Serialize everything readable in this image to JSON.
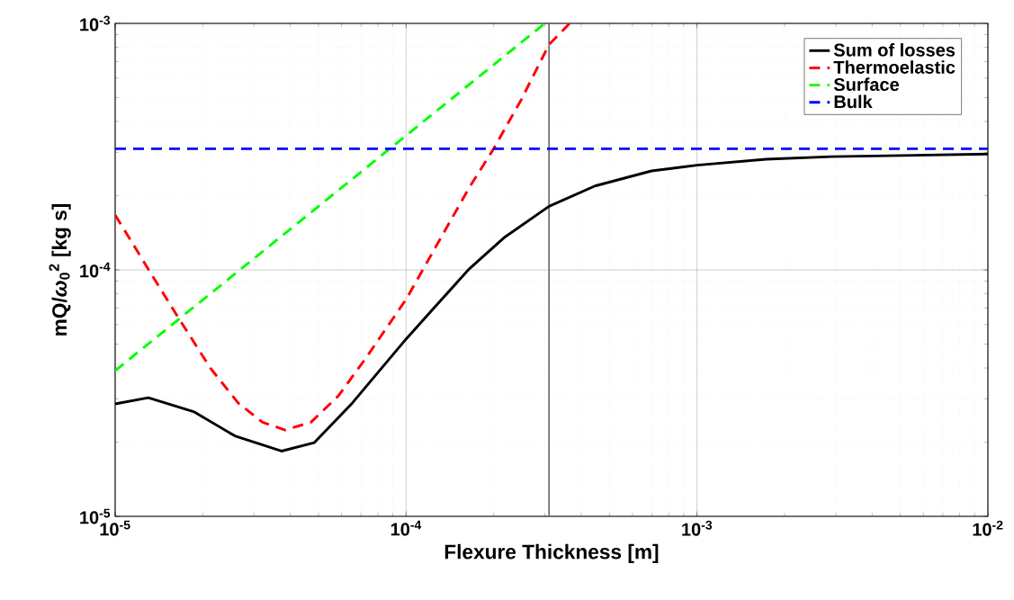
{
  "chart_data": {
    "type": "line",
    "xlabel": "Flexure Thickness [m]",
    "ylabel": "mQ/*ω*$_{0}$$^{2}$ [kg s]",
    "log": "xy",
    "grid": true,
    "legend": "top right",
    "marker": "none",
    "xlim": [
      1e-05,
      0.01
    ],
    "ylim": [
      1e-05,
      0.001
    ],
    "xticks": [
      {
        "value": 1e-05,
        "label": "10$^{-5}$"
      },
      {
        "value": 0.0001,
        "label": "10$^{-4}$"
      },
      {
        "value": 0.001,
        "label": "10$^{-3}$"
      },
      {
        "value": 0.01,
        "label": "10$^{-2}$"
      }
    ],
    "yticks": [
      {
        "value": 1e-05,
        "label": "10$^{-5}$"
      },
      {
        "value": 0.0001,
        "label": "10$^{-4}$"
      },
      {
        "value": 0.001,
        "label": "10$^{-3}$"
      }
    ],
    "ref_lines": [
      {
        "axis": "x",
        "value": 0.00031,
        "color": "#666666"
      }
    ],
    "series": [
      {
        "name": "Sum of losses",
        "color": "#000000",
        "line_style": "solid",
        "x": [
          1e-05,
          1.3e-05,
          1.86e-05,
          2.58e-05,
          3.73e-05,
          4.83e-05,
          6.53e-05,
          0.0001,
          0.000126,
          0.000165,
          0.000217,
          0.00031,
          0.000446,
          0.000698,
          0.001,
          0.00173,
          0.0029,
          0.01
        ],
        "values": [
          2.86e-05,
          3.03e-05,
          2.66e-05,
          2.12e-05,
          1.84e-05,
          1.99e-05,
          2.88e-05,
          5.24e-05,
          7.1e-05,
          0.000101,
          0.000135,
          0.000181,
          0.000219,
          0.000252,
          0.000266,
          0.000281,
          0.000288,
          0.000295
        ]
      },
      {
        "name": "Thermoelastic",
        "color": "#ff0000",
        "line_style": "dashed",
        "x": [
          1e-05,
          1.34e-05,
          1.67e-05,
          2.13e-05,
          2.65e-05,
          3.21e-05,
          3.84e-05,
          4.71e-05,
          5.85e-05,
          7.28e-05,
          0.0001,
          0.000126,
          0.000165,
          0.0002,
          0.000249,
          0.00031,
          0.000365
        ],
        "values": [
          0.000167,
          9.5e-05,
          6.25e-05,
          3.98e-05,
          2.88e-05,
          2.41e-05,
          2.24e-05,
          2.41e-05,
          3.08e-05,
          4.39e-05,
          7.59e-05,
          0.000123,
          0.000216,
          0.00031,
          0.000491,
          0.00082,
          0.001
        ]
      },
      {
        "name": "Surface",
        "color": "#00ff00",
        "line_style": "dashed",
        "x": [
          1e-05,
          0.0003
        ],
        "values": [
          3.9e-05,
          0.001
        ]
      },
      {
        "name": "Bulk",
        "color": "#0000ff",
        "line_style": "dashed",
        "x": [
          1e-05,
          0.01
        ],
        "values": [
          0.00031,
          0.00031
        ]
      }
    ]
  }
}
